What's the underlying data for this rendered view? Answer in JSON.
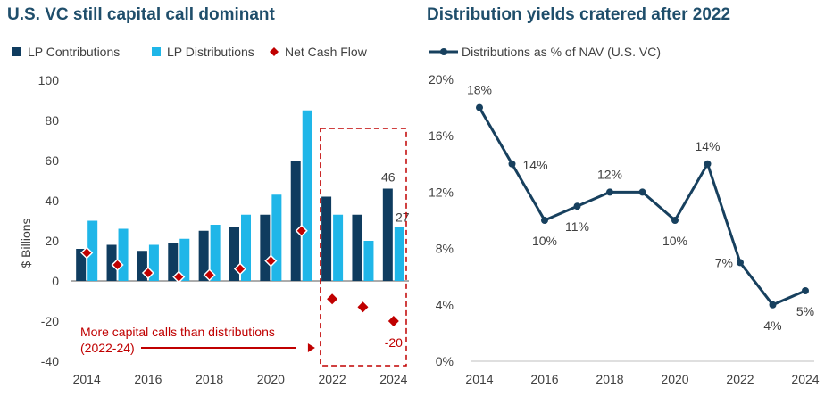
{
  "chart_data": [
    {
      "type": "bar",
      "title": "U.S. VC still capital call dominant",
      "ylabel": "$ Billions",
      "xlabel": "",
      "ylim": [
        -40,
        100
      ],
      "yticks": [
        -40,
        -20,
        0,
        20,
        40,
        60,
        80,
        100
      ],
      "x": [
        2014,
        2015,
        2016,
        2017,
        2018,
        2019,
        2020,
        2021,
        2022,
        2023,
        2024
      ],
      "xticks": [
        2014,
        2016,
        2018,
        2020,
        2022,
        2024
      ],
      "series": [
        {
          "name": "LP Contributions",
          "type": "bar",
          "color": "#0f3c5f",
          "values": [
            16,
            18,
            15,
            19,
            25,
            27,
            33,
            60,
            42,
            33,
            46
          ]
        },
        {
          "name": "LP Distributions",
          "type": "bar",
          "color": "#1fb6e8",
          "values": [
            30,
            26,
            18,
            21,
            28,
            33,
            43,
            85,
            33,
            20,
            27
          ]
        },
        {
          "name": "Net Cash Flow",
          "type": "scatter",
          "marker": "diamond",
          "color": "#c00000",
          "values": [
            14,
            8,
            4,
            2,
            3,
            6,
            10,
            25,
            -9,
            -13,
            -20
          ]
        }
      ],
      "data_labels": [
        {
          "text": "46",
          "series": "LP Contributions",
          "x": 2024
        },
        {
          "text": "27",
          "series": "LP Distributions",
          "x": 2024
        },
        {
          "text": "-20",
          "series": "Net Cash Flow",
          "x": 2024
        }
      ],
      "annotation": {
        "lines": [
          "More capital calls than distributions",
          "(2022-24)"
        ],
        "color": "#c00000",
        "highlight_years": [
          2022,
          2024
        ]
      },
      "legend_position": "top"
    },
    {
      "type": "line",
      "title": "Distribution yields cratered after 2022",
      "ylim": [
        0,
        20
      ],
      "yticks": [
        0,
        4,
        8,
        12,
        16,
        20
      ],
      "ytick_labels": [
        "0%",
        "4%",
        "8%",
        "12%",
        "16%",
        "20%"
      ],
      "x": [
        2014,
        2015,
        2016,
        2017,
        2018,
        2019,
        2020,
        2021,
        2022,
        2023,
        2024
      ],
      "xticks": [
        2014,
        2016,
        2018,
        2020,
        2022,
        2024
      ],
      "series": [
        {
          "name": "Distributions as % of NAV (U.S. VC)",
          "color": "#17405e",
          "values": [
            18,
            14,
            10,
            11,
            12,
            12,
            10,
            14,
            7,
            4,
            5
          ]
        }
      ],
      "data_labels": [
        {
          "text": "18%",
          "x": 2014,
          "pos": "above"
        },
        {
          "text": "14%",
          "x": 2015,
          "pos": "right"
        },
        {
          "text": "10%",
          "x": 2016,
          "pos": "below"
        },
        {
          "text": "11%",
          "x": 2017,
          "pos": "below"
        },
        {
          "text": "12%",
          "x": 2018,
          "pos": "above"
        },
        {
          "text": "10%",
          "x": 2020,
          "pos": "below"
        },
        {
          "text": "14%",
          "x": 2021,
          "pos": "above"
        },
        {
          "text": "7%",
          "x": 2022,
          "pos": "left"
        },
        {
          "text": "4%",
          "x": 2023,
          "pos": "below"
        },
        {
          "text": "5%",
          "x": 2024,
          "pos": "below"
        }
      ],
      "legend_position": "top-left"
    }
  ]
}
